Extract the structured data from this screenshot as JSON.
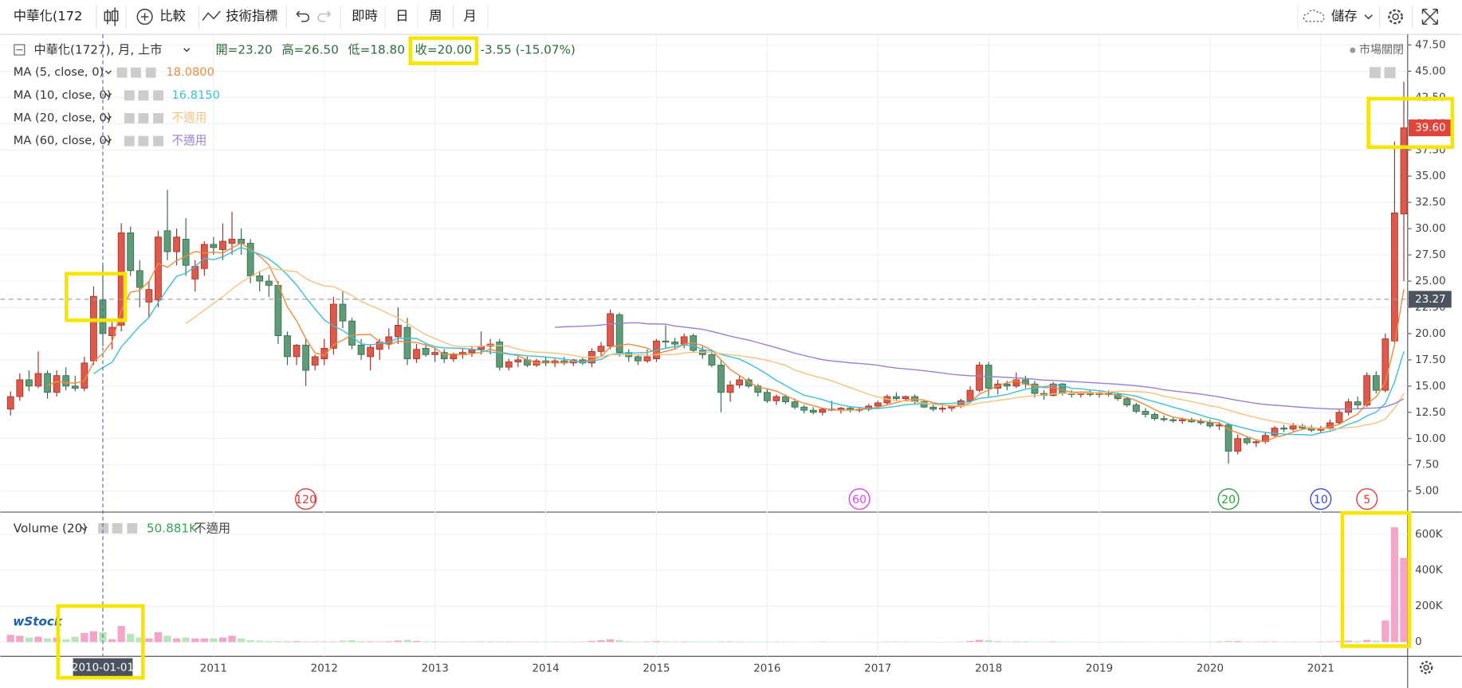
{
  "toolbar": {
    "symbol": "中華化(172",
    "compare": "比較",
    "indicators": "技術指標",
    "intervals": [
      "即時",
      "日",
      "周",
      "月"
    ],
    "save": "儲存"
  },
  "chart_data": {
    "type": "candlestick",
    "legend": {
      "symbol": "中華化(1727), 月, 上市",
      "open": "開=23.20",
      "high": "高=26.50",
      "low": "低=18.80",
      "close": "收=20.00",
      "change": "-3.55 (-15.07%)",
      "status": "市場關閉"
    },
    "logo": "wStock",
    "categories": [
      null,
      null,
      null,
      null,
      null,
      null,
      null,
      null,
      null,
      null,
      "2010-01-01",
      null,
      null,
      null,
      null,
      null,
      null,
      null,
      null,
      null,
      null,
      null,
      "2011",
      null,
      null,
      null,
      null,
      null,
      null,
      null,
      null,
      null,
      null,
      null,
      "2012",
      null,
      null,
      null,
      null,
      null,
      null,
      null,
      null,
      null,
      null,
      null,
      "2013",
      null,
      null,
      null,
      null,
      null,
      null,
      null,
      null,
      null,
      null,
      null,
      "2014",
      null,
      null,
      null,
      null,
      null,
      null,
      null,
      null,
      null,
      null,
      null,
      "2015",
      null,
      null,
      null,
      null,
      null,
      null,
      null,
      null,
      null,
      null,
      null,
      "2016",
      null,
      null,
      null,
      null,
      null,
      null,
      null,
      null,
      null,
      null,
      null,
      "2017",
      null,
      null,
      null,
      null,
      null,
      null,
      null,
      null,
      null,
      null,
      null,
      "2018",
      null,
      null,
      null,
      null,
      null,
      null,
      null,
      null,
      null,
      null,
      null,
      "2019",
      null,
      null,
      null,
      null,
      null,
      null,
      null,
      null,
      null,
      null,
      null,
      "2020",
      null,
      null,
      null,
      null,
      null,
      null,
      null,
      null,
      null,
      null,
      null,
      "2021",
      null,
      null,
      null,
      null,
      null,
      null,
      null,
      null,
      null
    ],
    "ohlc": [
      [
        12.8,
        14.5,
        12.2,
        14
      ],
      [
        14,
        16.2,
        13.6,
        15.6
      ],
      [
        15.6,
        16.5,
        14.5,
        15
      ],
      [
        15,
        18.3,
        14.8,
        16.2
      ],
      [
        16.2,
        16.5,
        13.8,
        14.4
      ],
      [
        14.4,
        16.5,
        14,
        16
      ],
      [
        16,
        16.8,
        14.6,
        15
      ],
      [
        15,
        16,
        14.5,
        14.8
      ],
      [
        14.8,
        17.8,
        14.5,
        17.2
      ],
      [
        17.4,
        24.5,
        17,
        23.55
      ],
      [
        23.2,
        26.5,
        18.8,
        20
      ],
      [
        19.8,
        21.3,
        18.5,
        20.6
      ],
      [
        20.8,
        30.5,
        20.2,
        29.6
      ],
      [
        29.6,
        30.2,
        25.5,
        26
      ],
      [
        26,
        27,
        22.5,
        24.4
      ],
      [
        23,
        25,
        21.5,
        24.2
      ],
      [
        23.2,
        29.8,
        22.5,
        29.2
      ],
      [
        29.8,
        33.7,
        27,
        27.8
      ],
      [
        27.8,
        30,
        26.5,
        29.2
      ],
      [
        29,
        31,
        25.5,
        26.5
      ],
      [
        25.2,
        27,
        24,
        26.4
      ],
      [
        26.2,
        28.8,
        25.5,
        28.5
      ],
      [
        28.5,
        29.2,
        27.5,
        28.2
      ],
      [
        28,
        30.5,
        27,
        28.8
      ],
      [
        28.6,
        31.6,
        27.5,
        29
      ],
      [
        29,
        30,
        27.5,
        28.6
      ],
      [
        28.6,
        29,
        24.8,
        25.5
      ],
      [
        25.5,
        26,
        24,
        25
      ],
      [
        25,
        25.6,
        23.5,
        24.6
      ],
      [
        24.6,
        25,
        19,
        19.8
      ],
      [
        19.8,
        20.2,
        17,
        17.8
      ],
      [
        17.8,
        19,
        17,
        18.9
      ],
      [
        18.9,
        19.5,
        15,
        16.5
      ],
      [
        17,
        18,
        16.5,
        17.8
      ],
      [
        17.6,
        19.5,
        17,
        18.6
      ],
      [
        18.6,
        23.5,
        18,
        22.8
      ],
      [
        22.8,
        24,
        20.5,
        21.2
      ],
      [
        21.2,
        21.5,
        18.5,
        18.9
      ],
      [
        18.9,
        19.5,
        17.5,
        18
      ],
      [
        17.8,
        19,
        16.5,
        18.7
      ],
      [
        18.5,
        19.5,
        17.5,
        19.2
      ],
      [
        19,
        20.5,
        18.5,
        19.7
      ],
      [
        19.7,
        22.5,
        19,
        20.8
      ],
      [
        20.6,
        21.5,
        17,
        17.6
      ],
      [
        17.6,
        19,
        17.2,
        18.5
      ],
      [
        18.6,
        19,
        17.8,
        18
      ],
      [
        18,
        18.6,
        17.3,
        18.2
      ],
      [
        18.2,
        18.5,
        17.2,
        17.6
      ],
      [
        17.6,
        18.2,
        17.3,
        18
      ],
      [
        18,
        18.6,
        17.6,
        18.2
      ],
      [
        18.2,
        18.8,
        17.8,
        18.5
      ],
      [
        18.5,
        20.2,
        18,
        18.8
      ],
      [
        18.8,
        19.5,
        18,
        19
      ],
      [
        19.2,
        19.5,
        16.5,
        16.8
      ],
      [
        16.8,
        17.6,
        16.5,
        17.3
      ],
      [
        17.3,
        17.8,
        16.8,
        17.5
      ],
      [
        17.5,
        17.8,
        16.8,
        17
      ],
      [
        17,
        17.6,
        16.8,
        17.4
      ],
      [
        17.4,
        17.8,
        16.9,
        17.2
      ],
      [
        17.2,
        17.6,
        16.8,
        17.4
      ],
      [
        17.4,
        17.8,
        17,
        17.2
      ],
      [
        17.2,
        17.6,
        16.9,
        17.5
      ],
      [
        17.5,
        17.8,
        17,
        17.2
      ],
      [
        17.2,
        18.6,
        16.8,
        18.3
      ],
      [
        18.3,
        19.2,
        17.8,
        18.8
      ],
      [
        18.8,
        22.3,
        18.5,
        21.9
      ],
      [
        21.8,
        22,
        17.8,
        18.2
      ],
      [
        18.2,
        18.5,
        17.3,
        17.8
      ],
      [
        17.8,
        18,
        17,
        17.4
      ],
      [
        17.4,
        18.5,
        17.2,
        17.8
      ],
      [
        17.6,
        19.5,
        17.3,
        19.3
      ],
      [
        19.3,
        20.8,
        18.6,
        19.2
      ],
      [
        19.2,
        19.6,
        18.5,
        19
      ],
      [
        19,
        20,
        18.6,
        19.7
      ],
      [
        19.8,
        20,
        18.2,
        18.4
      ],
      [
        18.4,
        18.8,
        17.6,
        18
      ],
      [
        18,
        18.4,
        16.8,
        17
      ],
      [
        17,
        17.5,
        12.5,
        14.4
      ],
      [
        14.4,
        15.5,
        13.5,
        15.1
      ],
      [
        15.1,
        16,
        14.8,
        15.6
      ],
      [
        15.6,
        15.8,
        14.8,
        15
      ],
      [
        15,
        15.2,
        14,
        14.4
      ],
      [
        14.4,
        14.8,
        13.4,
        13.6
      ],
      [
        13.6,
        14.2,
        13.2,
        14
      ],
      [
        14,
        14.2,
        13.3,
        13.5
      ],
      [
        13.5,
        13.8,
        12.8,
        13
      ],
      [
        13,
        13.2,
        12.4,
        12.7
      ],
      [
        12.7,
        13,
        12.3,
        12.5
      ],
      [
        12.5,
        12.9,
        12.2,
        12.8
      ],
      [
        12.8,
        13.6,
        12.6,
        12.7
      ],
      [
        12.7,
        13,
        12.4,
        12.9
      ],
      [
        12.9,
        13.1,
        12.5,
        12.7
      ],
      [
        12.7,
        13,
        12.5,
        12.8
      ],
      [
        12.8,
        13.3,
        12.6,
        13.1
      ],
      [
        13.1,
        13.6,
        12.9,
        13.4
      ],
      [
        13.4,
        14.2,
        13.2,
        14
      ],
      [
        14,
        14.4,
        13.6,
        13.8
      ],
      [
        13.8,
        14.1,
        13.5,
        14
      ],
      [
        14,
        14.2,
        13.3,
        13.5
      ],
      [
        13.5,
        13.7,
        12.9,
        13
      ],
      [
        13,
        13.3,
        12.6,
        12.8
      ],
      [
        12.8,
        13.1,
        12.5,
        12.9
      ],
      [
        12.9,
        13.2,
        12.6,
        13.1
      ],
      [
        13.1,
        13.8,
        12.9,
        13.6
      ],
      [
        13.6,
        15,
        13.4,
        14.6
      ],
      [
        14.6,
        17.3,
        14.4,
        17
      ],
      [
        17,
        17.3,
        14,
        14.8
      ],
      [
        14.8,
        15.6,
        14.2,
        15.2
      ],
      [
        15.2,
        15.5,
        14.6,
        15
      ],
      [
        15,
        16.3,
        14.8,
        15.6
      ],
      [
        15.6,
        16,
        14.8,
        15.2
      ],
      [
        15.2,
        15.5,
        13.9,
        14.3
      ],
      [
        14.3,
        14.6,
        13.7,
        14.1
      ],
      [
        14.1,
        15.4,
        14,
        15.2
      ],
      [
        15.2,
        15.3,
        14.1,
        14.3
      ],
      [
        14.3,
        14.6,
        13.9,
        14.2
      ],
      [
        14.2,
        14.5,
        13.9,
        14.3
      ],
      [
        14.3,
        14.6,
        14,
        14.2
      ],
      [
        14.2,
        14.5,
        13.9,
        14.3
      ],
      [
        14.3,
        14.6,
        14,
        14.2
      ],
      [
        14.2,
        14.4,
        13.6,
        13.8
      ],
      [
        13.8,
        14,
        13,
        13.2
      ],
      [
        13.2,
        13.4,
        12.4,
        12.6
      ],
      [
        12.6,
        12.9,
        12,
        12.3
      ],
      [
        12.3,
        12.5,
        11.7,
        11.9
      ],
      [
        11.9,
        12.2,
        11.6,
        11.8
      ],
      [
        11.8,
        12,
        11.5,
        11.7
      ],
      [
        11.7,
        12,
        11.4,
        11.8
      ],
      [
        11.8,
        12,
        11.5,
        11.6
      ],
      [
        11.6,
        11.9,
        11.3,
        11.5
      ],
      [
        11.5,
        11.8,
        11,
        11.2
      ],
      [
        11.2,
        11.6,
        10.8,
        11.3
      ],
      [
        11.3,
        11.5,
        7.6,
        8.8
      ],
      [
        8.8,
        10.4,
        8.5,
        10
      ],
      [
        10,
        10.2,
        9.4,
        9.6
      ],
      [
        9.6,
        9.9,
        9.2,
        9.7
      ],
      [
        9.7,
        10.6,
        9.5,
        10.3
      ],
      [
        10.3,
        11.2,
        10.1,
        11
      ],
      [
        11,
        11.3,
        10.6,
        10.9
      ],
      [
        10.9,
        11.5,
        10.7,
        11.2
      ],
      [
        11.2,
        11.4,
        10.8,
        11
      ],
      [
        11,
        11.3,
        10.6,
        10.8
      ],
      [
        10.8,
        11.2,
        10.5,
        11
      ],
      [
        11,
        11.8,
        10.8,
        11.5
      ],
      [
        11.5,
        12.8,
        11.3,
        12.5
      ],
      [
        12.5,
        13.8,
        12.2,
        13.5
      ],
      [
        13.5,
        14,
        12.8,
        13.2
      ],
      [
        13.2,
        16.3,
        13,
        16
      ],
      [
        16,
        16.4,
        14.3,
        14.6
      ],
      [
        14.6,
        20,
        14.4,
        19.5
      ],
      [
        19.3,
        38.3,
        19,
        31.5
      ],
      [
        31.4,
        44,
        25,
        39.6
      ]
    ],
    "up_color": "#e0584a",
    "down_color": "#5e9c78",
    "up_border": "#9b3228",
    "down_border": "#35684c",
    "ylim": [
      3,
      48.5
    ],
    "yticks": [
      {
        "value": 5,
        "label": "5.00"
      },
      {
        "value": 7.5,
        "label": "7.50"
      },
      {
        "value": 10,
        "label": "10.00"
      },
      {
        "value": 12.5,
        "label": "12.50"
      },
      {
        "value": 15,
        "label": "15.00"
      },
      {
        "value": 17.5,
        "label": "17.50"
      },
      {
        "value": 20,
        "label": "20.00"
      },
      {
        "value": 22.5,
        "label": "22.50"
      },
      {
        "value": 25,
        "label": "25.00"
      },
      {
        "value": 27.5,
        "label": "27.50"
      },
      {
        "value": 30,
        "label": "30.00"
      },
      {
        "value": 32.5,
        "label": "32.50"
      },
      {
        "value": 35,
        "label": "35.00"
      },
      {
        "value": 37.5,
        "label": "37.50"
      },
      {
        "value": 40,
        "label": "40.00"
      },
      {
        "value": 42.5,
        "label": "42.50"
      },
      {
        "value": 45,
        "label": "45.00"
      },
      {
        "value": 47.5,
        "label": "47.50"
      }
    ],
    "grid": true,
    "crosshair_price": 23.27,
    "last_price": {
      "value": 39.6,
      "label": "39.60"
    },
    "moving_averages": [
      {
        "name": "MA (5, close, 0)",
        "period": 5,
        "color": "#f28a3a",
        "value_label": "18.0800"
      },
      {
        "name": "MA (10, close, 0)",
        "period": 10,
        "color": "#3cbfd8",
        "value_label": "16.8150"
      },
      {
        "name": "MA (20, close, 0)",
        "period": 20,
        "color": "#f5c27c",
        "value_label": "不適用"
      },
      {
        "name": "MA (60, close, 0)",
        "period": 60,
        "color": "#9b7fd0",
        "value_label": "不適用"
      }
    ],
    "lookback_markers": [
      {
        "value": 120,
        "color": "#e53935"
      },
      {
        "value": 60,
        "color": "#e040fb"
      },
      {
        "value": 20,
        "color": "#2e9e3e"
      },
      {
        "value": 10,
        "color": "#3949e0"
      },
      {
        "value": 5,
        "color": "#e53935"
      }
    ],
    "volume": {
      "title": "Volume (20)",
      "value_label": "50.881K",
      "ma_label": "不適用",
      "up_color": "#f5a6c8",
      "down_color": "#b8e6b8",
      "ylim": [
        -80000,
        720000
      ],
      "yticks": [
        0,
        {
          "value": 200000,
          "label": "200K"
        },
        {
          "value": 400000,
          "label": "400K"
        },
        {
          "value": 600000,
          "label": "600K"
        }
      ],
      "values": [
        40000,
        35000,
        25000,
        30000,
        20000,
        25000,
        15000,
        30000,
        50000,
        60000,
        55000,
        15000,
        90000,
        45000,
        25000,
        20000,
        55000,
        35000,
        20000,
        25000,
        20000,
        20000,
        20000,
        25000,
        35000,
        20000,
        10000,
        8000,
        5000,
        5000,
        5000,
        5000,
        4000,
        3000,
        3000,
        3000,
        8000,
        10000,
        5000,
        4000,
        3000,
        4000,
        8000,
        12000,
        6000,
        4000,
        3000,
        3000,
        2000,
        2000,
        2000,
        3000,
        3000,
        4000,
        3000,
        2000,
        2000,
        2000,
        2000,
        2000,
        2000,
        2000,
        3000,
        6000,
        10000,
        15000,
        10000,
        4000,
        3000,
        3000,
        5000,
        4000,
        3000,
        3000,
        3000,
        2000,
        2000,
        4000,
        3000,
        2000,
        2000,
        2000,
        2000,
        2000,
        2000,
        1000,
        1000,
        1000,
        2000,
        1000,
        1000,
        1000,
        1000,
        1000,
        1000,
        2000,
        3000,
        2000,
        2000,
        1000,
        1000,
        1000,
        1000,
        2000,
        6000,
        12000,
        10000,
        4000,
        3000,
        3000,
        4000,
        2000,
        2000,
        3000,
        2000,
        1000,
        1000,
        1000,
        1000,
        1000,
        2000,
        1000,
        2000,
        1000,
        1000,
        1000,
        1000,
        1000,
        1000,
        1000,
        2000,
        3000,
        6000,
        5000,
        2000,
        2000,
        3000,
        3000,
        2000,
        2000,
        2000,
        2000,
        3000,
        3000,
        5000,
        8000,
        5000,
        12000,
        8000,
        120000,
        640000,
        470000
      ]
    }
  }
}
